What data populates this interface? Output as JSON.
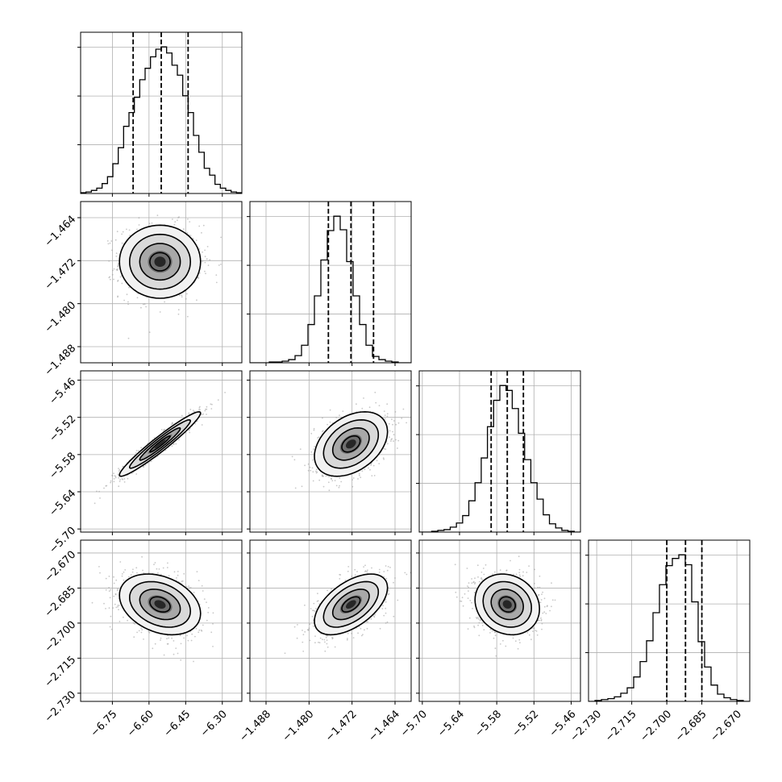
{
  "chart_data": {
    "type": "corner",
    "parameters": 4,
    "grid": true,
    "colors": {
      "hist": "#000000",
      "scatter": "#9a9a9a",
      "contour": "#000000",
      "grid": "#b0b0b0"
    },
    "axes": [
      {
        "lim": [
          -6.88,
          -6.22
        ],
        "ticks": [
          -6.75,
          -6.6,
          -6.45,
          -6.3
        ],
        "tick_labels": [
          "−6.75",
          "−6.60",
          "−6.45",
          "−6.30"
        ]
      },
      {
        "lim": [
          -1.491,
          -1.461
        ],
        "ticks": [
          -1.488,
          -1.48,
          -1.472,
          -1.464
        ],
        "tick_labels": [
          "−1.488",
          "−1.480",
          "−1.472",
          "−1.464"
        ]
      },
      {
        "lim": [
          -5.705,
          -5.445
        ],
        "ticks": [
          -5.7,
          -5.64,
          -5.58,
          -5.52,
          -5.46
        ],
        "tick_labels": [
          "−5.70",
          "−5.64",
          "−5.58",
          "−5.52",
          "−5.46"
        ]
      },
      {
        "lim": [
          -2.7335,
          -2.6645
        ],
        "ticks": [
          -2.73,
          -2.715,
          -2.7,
          -2.685,
          -2.67
        ],
        "tick_labels": [
          "−2.730",
          "−2.715",
          "−2.700",
          "−2.685",
          "−2.670"
        ]
      }
    ],
    "histograms": [
      {
        "param": 0,
        "edges_range": [
          -6.88,
          -6.22
        ],
        "counts": [
          1,
          2,
          4,
          7,
          13,
          22,
          39,
          60,
          88,
          106,
          126,
          149,
          164,
          179,
          189,
          192,
          184,
          168,
          155,
          128,
          106,
          76,
          54,
          33,
          24,
          12,
          7,
          4,
          2,
          1
        ],
        "quantiles": [
          -6.665,
          -6.55,
          -6.44
        ]
      },
      {
        "param": 1,
        "edges_range": [
          -1.491,
          -1.461
        ],
        "counts": [
          0,
          0,
          0,
          1,
          1,
          2,
          4,
          9,
          22,
          48,
          84,
          129,
          166,
          184,
          167,
          127,
          84,
          48,
          22,
          8,
          4,
          2,
          1,
          0,
          0
        ],
        "quantiles": [
          -1.4764,
          -1.4722,
          -1.468
        ]
      },
      {
        "param": 2,
        "edges_range": [
          -5.705,
          -5.445
        ],
        "counts": [
          0,
          0,
          1,
          2,
          3,
          6,
          11,
          20,
          38,
          60,
          90,
          128,
          160,
          178,
          172,
          150,
          120,
          88,
          60,
          40,
          21,
          10,
          5,
          2,
          1,
          0
        ],
        "quantiles": [
          -5.589,
          -5.563,
          -5.537
        ]
      },
      {
        "param": 3,
        "edges_range": [
          -2.7335,
          -2.6645
        ],
        "counts": [
          0,
          1,
          2,
          3,
          5,
          9,
          15,
          27,
          44,
          67,
          98,
          129,
          150,
          158,
          162,
          151,
          110,
          66,
          38,
          18,
          8,
          4,
          2,
          1,
          0
        ],
        "quantiles": [
          -2.7,
          -2.692,
          -2.685
        ]
      }
    ],
    "pairs": [
      {
        "x": 0,
        "y": 1,
        "center": [
          -6.555,
          -1.4722
        ],
        "sigma": [
          0.083,
          0.0034
        ],
        "rho": 0.0
      },
      {
        "x": 0,
        "y": 2,
        "center": [
          -6.555,
          -5.563
        ],
        "sigma": [
          0.083,
          0.026
        ],
        "rho": 0.96
      },
      {
        "x": 1,
        "y": 2,
        "center": [
          -1.4722,
          -5.563
        ],
        "sigma": [
          0.0034,
          0.026
        ],
        "rho": 0.38
      },
      {
        "x": 0,
        "y": 3,
        "center": [
          -6.555,
          -2.692
        ],
        "sigma": [
          0.083,
          0.0065
        ],
        "rho": -0.3
      },
      {
        "x": 1,
        "y": 3,
        "center": [
          -1.4722,
          -2.692
        ],
        "sigma": [
          0.0034,
          0.0065
        ],
        "rho": 0.55
      },
      {
        "x": 2,
        "y": 3,
        "center": [
          -5.563,
          -2.692
        ],
        "sigma": [
          0.026,
          0.0065
        ],
        "rho": -0.15
      }
    ],
    "contour_levels_sigma": [
      0.5,
      1.0,
      1.5,
      2.0
    ]
  }
}
